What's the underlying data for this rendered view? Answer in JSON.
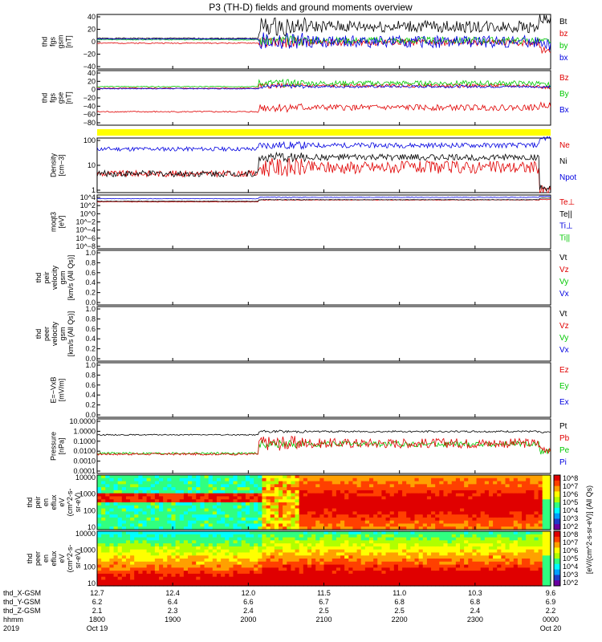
{
  "title": "P3 (TH-D) fields and ground moments overview",
  "x_axis": {
    "row_labels": [
      "thd_X-GSM",
      "thd_Y-GSM",
      "thd_Z-GSM",
      "hhmm",
      "2019"
    ],
    "ticks": [
      {
        "x": "12.7",
        "y": "6.2",
        "z": "2.1",
        "hhmm": "1800",
        "date": "Oct 19"
      },
      {
        "x": "12.4",
        "y": "6.4",
        "z": "2.3",
        "hhmm": "1900",
        "date": ""
      },
      {
        "x": "12.0",
        "y": "6.6",
        "z": "2.4",
        "hhmm": "2000",
        "date": ""
      },
      {
        "x": "11.5",
        "y": "6.7",
        "z": "2.5",
        "hhmm": "2100",
        "date": ""
      },
      {
        "x": "11.0",
        "y": "6.8",
        "z": "2.5",
        "hhmm": "2200",
        "date": ""
      },
      {
        "x": "10.3",
        "y": "6.8",
        "z": "2.4",
        "hhmm": "2300",
        "date": ""
      },
      {
        "x": "9.6",
        "y": "6.9",
        "z": "2.2",
        "hhmm": "0000",
        "date": "Oct 20"
      }
    ]
  },
  "colorbar": {
    "label": "[eV/(cm^2-s-sr-eV)] (All Qs)",
    "ticks": [
      "10^8",
      "10^7",
      "10^6",
      "10^5",
      "10^4",
      "10^3",
      "10^2"
    ]
  },
  "chart_data": [
    {
      "type": "line",
      "id": "fgs_gsm",
      "ylabel": [
        "thd",
        "fgs",
        "gsm",
        "[nT]"
      ],
      "yticks": [
        "40",
        "20",
        "0",
        "−20",
        "−40"
      ],
      "ylim": [
        -40,
        40
      ],
      "series": [
        {
          "name": "Bt",
          "color": "#000000",
          "seed": 1,
          "pre": 5,
          "post": 22,
          "noise_pre": 0.8,
          "noise_post": 9,
          "end": 32
        },
        {
          "name": "bz",
          "color": "#e00000",
          "seed": 2,
          "pre": -2,
          "post": -1,
          "noise_pre": 0.8,
          "noise_post": 5,
          "end": -12
        },
        {
          "name": "by",
          "color": "#00c800",
          "seed": 3,
          "pre": 3,
          "post": 2,
          "noise_pre": 0.6,
          "noise_post": 5,
          "end": 1
        },
        {
          "name": "bx",
          "color": "#0000e0",
          "seed": 4,
          "pre": 4,
          "post": 0,
          "noise_pre": 0.6,
          "noise_post": 9,
          "end": -6
        }
      ]
    },
    {
      "type": "line",
      "id": "fgs_gse",
      "ylabel": [
        "thd",
        "fgs",
        "gse",
        "[nT]"
      ],
      "yticks": [
        "40",
        "20",
        "0",
        "−20",
        "−40",
        "−60",
        "−80"
      ],
      "ylim": [
        -90,
        40
      ],
      "series": [
        {
          "name": "Bz",
          "color": "#e00000",
          "seed": 5,
          "pre": -2,
          "post": 4,
          "noise_pre": 1,
          "noise_post": 4,
          "end": 0
        },
        {
          "name": "By",
          "color": "#00c800",
          "seed": 6,
          "pre": 2,
          "post": 10,
          "noise_pre": 1,
          "noise_post": 6,
          "end": 6
        },
        {
          "name": "Bx",
          "color": "#0000e0",
          "seed": 7,
          "pre": -3,
          "post": 2,
          "noise_pre": 1,
          "noise_post": 3,
          "end": 1
        },
        {
          "name": "Bx_red",
          "color": "#e00000",
          "seed": 8,
          "pre": -58,
          "post": -48,
          "noise_pre": 1.5,
          "noise_post": 7,
          "end": -42
        }
      ],
      "legend": [
        {
          "label": "Bz",
          "color": "#e00000"
        },
        {
          "label": "By",
          "color": "#00c800"
        },
        {
          "label": "Bx",
          "color": "#0000e0"
        }
      ]
    },
    {
      "type": "line",
      "id": "density",
      "log": true,
      "ylabel": [
        "Density",
        "[cm−3]"
      ],
      "yticks": [
        "100",
        "10",
        "1"
      ],
      "ylim": [
        0.5,
        200
      ],
      "series": [
        {
          "name": "Ne",
          "color": "#e00000",
          "seed": 9,
          "pre": 4,
          "post": 8,
          "noise_pre": 0.15,
          "noise_post": 0.3,
          "end": 0.6
        },
        {
          "name": "Ni",
          "color": "#000000",
          "seed": 10,
          "pre": 4,
          "post": 24,
          "noise_pre": 0.15,
          "noise_post": 0.15,
          "end": 0.8
        },
        {
          "name": "Npot",
          "color": "#0000e0",
          "seed": 11,
          "pre": 60,
          "post": 90,
          "noise_pre": 0.1,
          "noise_post": 0.12,
          "end": 200
        }
      ],
      "legend": [
        {
          "label": "Ne",
          "color": "#e00000"
        },
        {
          "label": "Ni",
          "color": "#000000"
        },
        {
          "label": "Npot",
          "color": "#0000e0"
        }
      ]
    },
    {
      "type": "line",
      "id": "temp",
      "log": true,
      "ylabel": [
        "moqt3",
        "[eV]"
      ],
      "yticks": [
        "10^4",
        "10^2",
        "10^0",
        "10^−2",
        "10^−4",
        "10^−6",
        "10^−8"
      ],
      "ylim": [
        1e-08,
        10000.0
      ],
      "series": [
        {
          "name": "Te⊥",
          "color": "#e00000",
          "seed": 12,
          "pre": 300,
          "post": 800,
          "noise_pre": 0.05,
          "noise_post": 0.05,
          "end": 1000
        },
        {
          "name": "Te||",
          "color": "#000000",
          "seed": 13,
          "pre": 400,
          "post": 900,
          "noise_pre": 0.05,
          "noise_post": 0.05,
          "end": 2000
        },
        {
          "name": "Ti⊥",
          "color": "#0000e0",
          "seed": 14,
          "pre": 1500,
          "post": 3000,
          "noise_pre": 0.05,
          "noise_post": 0.05,
          "end": 5000
        }
      ],
      "legend": [
        {
          "label": "Te⊥",
          "color": "#e00000"
        },
        {
          "label": "Te||",
          "color": "#000000"
        },
        {
          "label": "Ti⊥",
          "color": "#0000e0"
        },
        {
          "label": "Ti||",
          "color": "#00c800"
        }
      ]
    },
    {
      "type": "line",
      "id": "peir_velocity",
      "ylabel": [
        "thd",
        "peir",
        "velocity",
        "gsm",
        "[km/s (All Qs)]"
      ],
      "yticks": [
        "1.0",
        "0.8",
        "0.6",
        "0.4",
        "0.2",
        "0.0"
      ],
      "ylim": [
        0,
        1
      ],
      "series": [],
      "legend": [
        {
          "label": "Vt",
          "color": "#000000"
        },
        {
          "label": "Vz",
          "color": "#e00000"
        },
        {
          "label": "Vy",
          "color": "#00c800"
        },
        {
          "label": "Vx",
          "color": "#0000e0"
        }
      ]
    },
    {
      "type": "line",
      "id": "peer_velocity",
      "ylabel": [
        "thd",
        "peer",
        "velocity",
        "gsm",
        "[km/s (All Qs)]"
      ],
      "yticks": [
        "1.0",
        "0.8",
        "0.6",
        "0.4",
        "0.2",
        "0.0"
      ],
      "ylim": [
        0,
        1
      ],
      "series": [],
      "legend": [
        {
          "label": "Vt",
          "color": "#000000"
        },
        {
          "label": "Vz",
          "color": "#e00000"
        },
        {
          "label": "Vy",
          "color": "#00c800"
        },
        {
          "label": "Vx",
          "color": "#0000e0"
        }
      ]
    },
    {
      "type": "line",
      "id": "efield",
      "ylabel": [
        "E=−VxB",
        "[mV/m]"
      ],
      "yticks": [
        "1.0",
        "0.8",
        "0.6",
        "0.4",
        "0.2",
        "0.0"
      ],
      "ylim": [
        0,
        1
      ],
      "series": [],
      "legend": [
        {
          "label": "Ez",
          "color": "#e00000"
        },
        {
          "label": "Ey",
          "color": "#00c800"
        },
        {
          "label": "Ex",
          "color": "#0000e0"
        }
      ]
    },
    {
      "type": "line",
      "id": "pressure",
      "log": true,
      "ylabel": [
        "Pressure",
        "[nPa]"
      ],
      "yticks": [
        "10.0000",
        "1.0000",
        "0.1000",
        "0.0100",
        "0.0010",
        "0.0001"
      ],
      "ylim": [
        0.0001,
        10
      ],
      "series": [
        {
          "name": "Pt",
          "color": "#000000",
          "seed": 15,
          "pre": 0.35,
          "post": 0.7,
          "noise_pre": 0.05,
          "noise_post": 0.08,
          "end": 0.6
        },
        {
          "name": "Pe",
          "color": "#00c800",
          "seed": 16,
          "pre": 0.007,
          "post": 0.05,
          "noise_pre": 0.1,
          "noise_post": 0.25,
          "end": 0.01
        },
        {
          "name": "Pb",
          "color": "#e00000",
          "seed": 17,
          "pre": 0.006,
          "post": 0.06,
          "noise_pre": 0.1,
          "noise_post": 0.45,
          "end": 0.02
        }
      ],
      "legend": [
        {
          "label": "Pt",
          "color": "#000000"
        },
        {
          "label": "Pb",
          "color": "#e00000"
        },
        {
          "label": "Pe",
          "color": "#00c800"
        },
        {
          "label": "Pi",
          "color": "#0000e0"
        }
      ]
    },
    {
      "type": "heatmap",
      "id": "peir_eflux",
      "ylabel": [
        "thd",
        "peir",
        "en",
        "eflux",
        "eV",
        "(cm^2-s-",
        "sr-eV)"
      ],
      "yticks": [
        "10000",
        "1000",
        "100",
        "10"
      ],
      "ylim": [
        5,
        25000
      ],
      "log": true
    },
    {
      "type": "heatmap",
      "id": "peer_eflux",
      "ylabel": [
        "thd",
        "peer",
        "en",
        "eflux",
        "eV",
        "(cm^2-s-",
        "sr-eV)"
      ],
      "yticks": [
        "10000",
        "1000",
        "100",
        "10"
      ],
      "ylim": [
        5,
        25000
      ],
      "log": true
    }
  ]
}
